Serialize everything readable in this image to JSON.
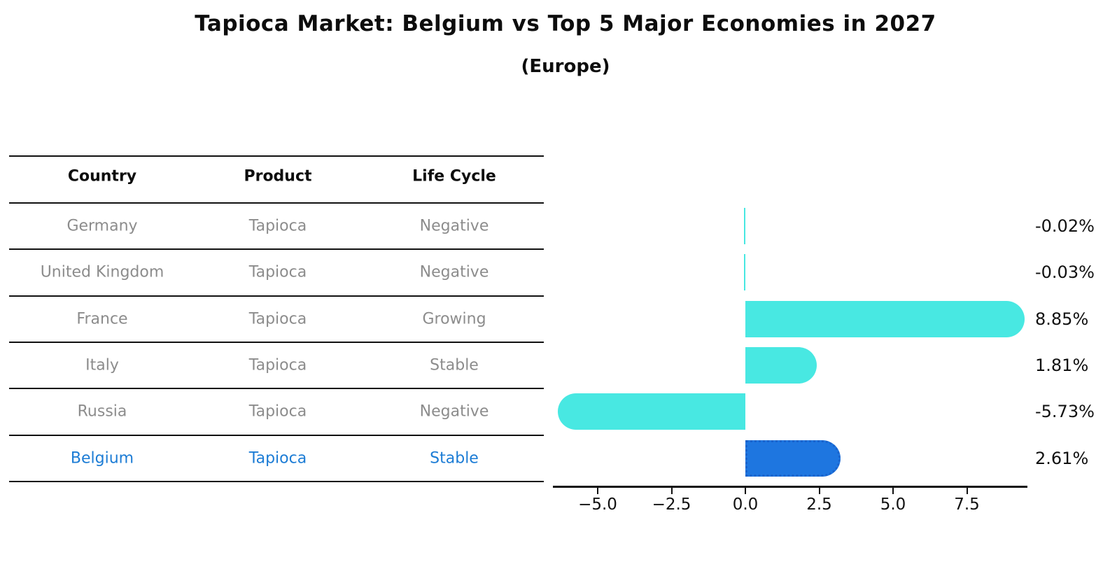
{
  "title": "Tapioca Market: Belgium vs Top 5 Major Economies in 2027",
  "subtitle": "(Europe)",
  "table": {
    "headers": [
      "Country",
      "Product",
      "Life Cycle"
    ],
    "rows": [
      {
        "country": "Germany",
        "product": "Tapioca",
        "life_cycle": "Negative",
        "highlight": false
      },
      {
        "country": "United Kingdom",
        "product": "Tapioca",
        "life_cycle": "Negative",
        "highlight": false
      },
      {
        "country": "France",
        "product": "Tapioca",
        "life_cycle": "Growing",
        "highlight": false
      },
      {
        "country": "Italy",
        "product": "Tapioca",
        "life_cycle": "Stable",
        "highlight": false
      },
      {
        "country": "Russia",
        "product": "Tapioca",
        "life_cycle": "Negative",
        "highlight": false
      },
      {
        "country": "Belgium",
        "product": "Tapioca",
        "life_cycle": "Stable",
        "highlight": true
      }
    ]
  },
  "chart_data": {
    "type": "bar",
    "orientation": "horizontal",
    "title": "Tapioca Market: Belgium vs Top 5 Major Economies in 2027",
    "subtitle": "(Europe)",
    "categories": [
      "Germany",
      "United Kingdom",
      "France",
      "Italy",
      "Russia",
      "Belgium"
    ],
    "values": [
      -0.02,
      -0.03,
      8.85,
      1.81,
      -5.73,
      2.61
    ],
    "value_labels": [
      "-0.02%",
      "-0.03%",
      "8.85%",
      "1.81%",
      "-5.73%",
      "2.61%"
    ],
    "highlight_index": 5,
    "x_tick_labels": [
      "−5.0",
      "−2.5",
      "0.0",
      "2.5",
      "5.0",
      "7.5"
    ],
    "x_tick_values": [
      -5.0,
      -2.5,
      0.0,
      2.5,
      5.0,
      7.5
    ],
    "xlim": [
      -6.5,
      9.55
    ],
    "grid": false,
    "legend": false
  },
  "colors": {
    "bar": "#48e8e2",
    "highlight_bar": "#1e76e0",
    "highlight_border": "#1a63cc",
    "highlight_text": "#1c7cd5",
    "table_text": "#8c8c8c",
    "ink": "#111111"
  }
}
